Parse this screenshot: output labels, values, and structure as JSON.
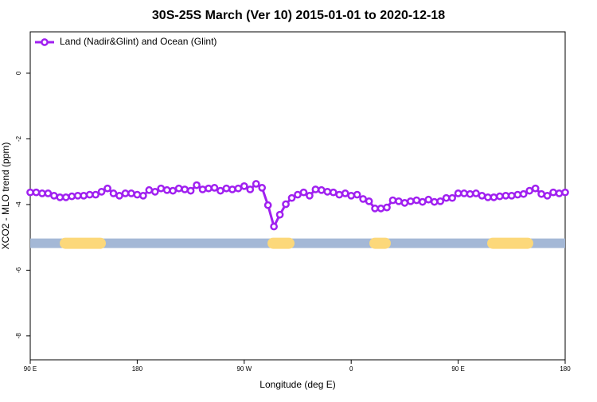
{
  "chart_data": {
    "type": "line",
    "title": "30S-25S March (Ver 10)   2015-01-01 to 2020-12-18",
    "x_label": "Longitude (deg E)",
    "y_label": "XCO2 - MLO trend (ppm)",
    "xlim": [
      90,
      540
    ],
    "ylim": [
      -8.73,
      1.26
    ],
    "xticks": [
      {
        "value": 90,
        "label": "90 E"
      },
      {
        "value": 180,
        "label": "180"
      },
      {
        "value": 270,
        "label": "90 W"
      },
      {
        "value": 360,
        "label": "0"
      },
      {
        "value": 450,
        "label": "90 E"
      },
      {
        "value": 540,
        "label": "180"
      }
    ],
    "yticks": [
      0,
      -2,
      -4,
      -6,
      -8
    ],
    "legend": "top-left",
    "x": [
      90,
      95,
      100,
      105,
      110,
      115,
      120,
      125,
      130,
      135,
      140,
      145,
      150,
      155,
      160,
      165,
      170,
      175,
      180,
      185,
      190,
      195,
      200,
      205,
      210,
      215,
      220,
      225,
      230,
      235,
      240,
      245,
      250,
      255,
      260,
      265,
      270,
      275,
      280,
      285,
      290,
      295,
      300,
      305,
      310,
      315,
      320,
      325,
      330,
      335,
      340,
      345,
      350,
      355,
      360,
      365,
      370,
      375,
      380,
      385,
      390,
      395,
      400,
      405,
      410,
      415,
      420,
      425,
      430,
      435,
      440,
      445,
      450,
      455,
      460,
      465,
      470,
      475,
      480,
      485,
      490,
      495,
      500,
      505,
      510,
      515,
      520,
      525,
      530,
      535,
      540
    ],
    "series": [
      {
        "name": "Land (Nadir&Glint) and Ocean (Glint)",
        "color": "#a020f0",
        "values": [
          -3.63,
          -3.63,
          -3.66,
          -3.66,
          -3.73,
          -3.78,
          -3.78,
          -3.75,
          -3.73,
          -3.73,
          -3.7,
          -3.7,
          -3.61,
          -3.51,
          -3.66,
          -3.73,
          -3.66,
          -3.66,
          -3.7,
          -3.73,
          -3.56,
          -3.61,
          -3.51,
          -3.56,
          -3.58,
          -3.51,
          -3.54,
          -3.58,
          -3.41,
          -3.54,
          -3.51,
          -3.49,
          -3.58,
          -3.51,
          -3.54,
          -3.51,
          -3.44,
          -3.54,
          -3.37,
          -3.49,
          -4.02,
          -4.67,
          -4.31,
          -3.99,
          -3.8,
          -3.7,
          -3.63,
          -3.73,
          -3.54,
          -3.56,
          -3.61,
          -3.63,
          -3.7,
          -3.66,
          -3.73,
          -3.7,
          -3.83,
          -3.9,
          -4.12,
          -4.12,
          -4.09,
          -3.87,
          -3.9,
          -3.95,
          -3.9,
          -3.87,
          -3.92,
          -3.85,
          -3.92,
          -3.9,
          -3.8,
          -3.8,
          -3.66,
          -3.66,
          -3.68,
          -3.66,
          -3.73,
          -3.78,
          -3.78,
          -3.75,
          -3.73,
          -3.73,
          -3.7,
          -3.68,
          -3.58,
          -3.51,
          -3.68,
          -3.73,
          -3.63,
          -3.66,
          -3.63
        ]
      }
    ],
    "surface_band": {
      "y": -5.18,
      "ocean_color": "#a4b8d6",
      "land_color": "#fcd87a",
      "land": [
        [
          114.8,
          153.6
        ],
        [
          289.6,
          312.3
        ],
        [
          375.3,
          393.3
        ],
        [
          474.4,
          513.2
        ]
      ]
    }
  }
}
